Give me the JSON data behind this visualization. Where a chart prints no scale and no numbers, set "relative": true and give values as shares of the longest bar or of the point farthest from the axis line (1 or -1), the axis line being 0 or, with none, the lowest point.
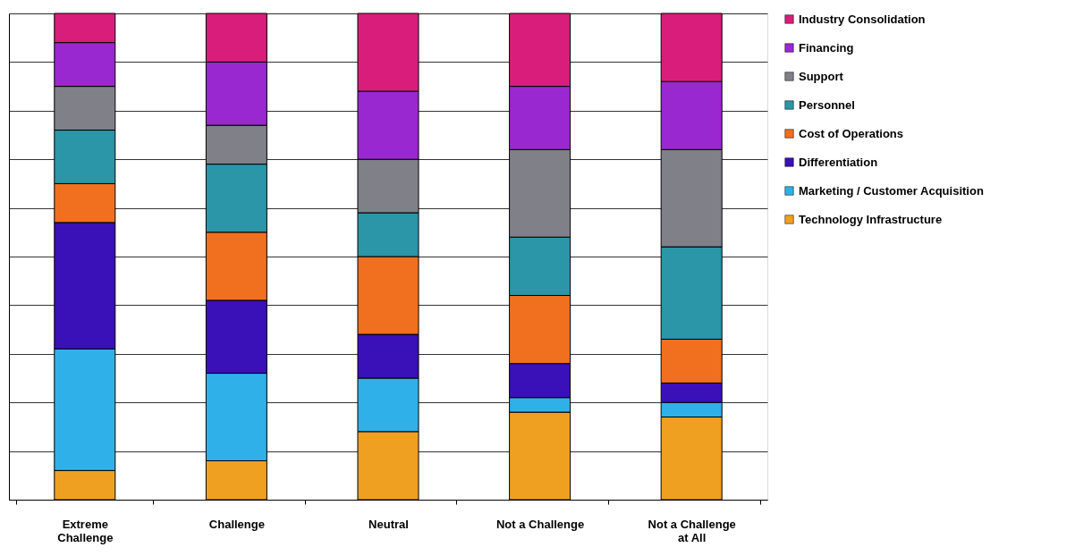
{
  "chart_data": {
    "type": "bar",
    "stacked": true,
    "relative": true,
    "grid": "y",
    "legend": "right",
    "categories": [
      "Extreme Challenge",
      "Challenge",
      "Neutral",
      "Not a Challenge",
      "Not a Challenge at All"
    ],
    "series": [
      {
        "name": "Technology Infrastructure",
        "color": "#f0a020",
        "values": [
          0.06,
          0.08,
          0.14,
          0.18,
          0.17
        ]
      },
      {
        "name": "Marketing / Customer Acquisition",
        "color": "#30b0e8",
        "values": [
          0.25,
          0.18,
          0.11,
          0.03,
          0.03
        ]
      },
      {
        "name": "Differentiation",
        "color": "#3a10b8",
        "values": [
          0.26,
          0.15,
          0.09,
          0.07,
          0.04
        ]
      },
      {
        "name": "Cost of Operations",
        "color": "#f07020",
        "values": [
          0.08,
          0.14,
          0.16,
          0.14,
          0.09
        ]
      },
      {
        "name": "Personnel",
        "color": "#2a96a8",
        "values": [
          0.11,
          0.14,
          0.09,
          0.12,
          0.19
        ]
      },
      {
        "name": "Support",
        "color": "#808088",
        "values": [
          0.09,
          0.08,
          0.11,
          0.18,
          0.2
        ]
      },
      {
        "name": "Financing",
        "color": "#9a28d0",
        "values": [
          0.09,
          0.13,
          0.14,
          0.13,
          0.14
        ]
      },
      {
        "name": "Industry Consolidation",
        "color": "#d81e7a",
        "values": [
          0.06,
          0.1,
          0.16,
          0.15,
          0.14
        ]
      }
    ]
  }
}
